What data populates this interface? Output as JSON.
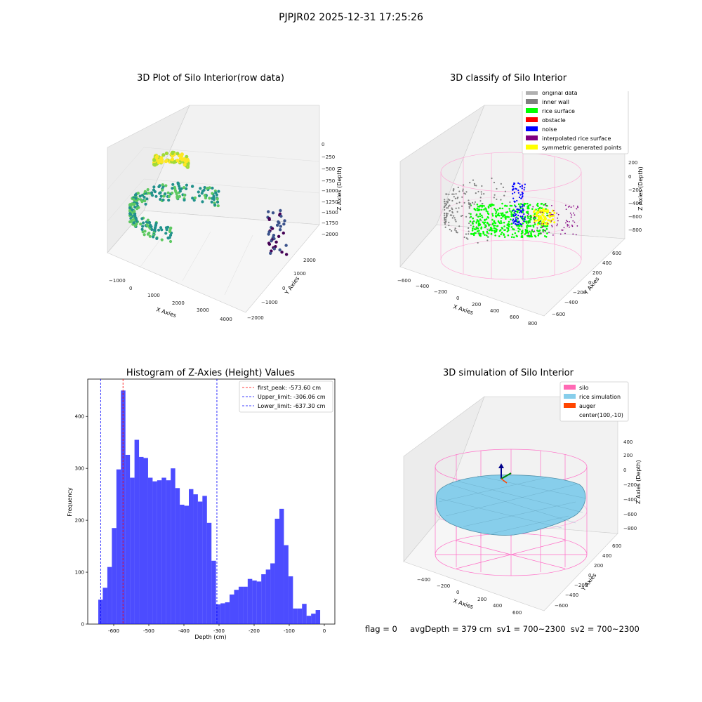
{
  "figure": {
    "title": "PJPJR02 2025-12-31 17:25:26",
    "footer": "flag = 0     avgDepth = 379 cm  sv1 = 700~2300  sv2 = 700~2300"
  },
  "chart_data": [
    {
      "type": "scatter",
      "title": "3D Plot of Silo Interior(row data)",
      "xlabel": "X Axies",
      "ylabel": "Y Axies",
      "zlabel": "Z Axies (Depth)",
      "x_ticks": [
        "−1000",
        "0",
        "1000",
        "2000",
        "3000",
        "4000"
      ],
      "y_ticks": [
        "2000",
        "1000",
        "0",
        "−1000",
        "−2000"
      ],
      "z_ticks": [
        "0",
        "−250",
        "−500",
        "−750",
        "−1000",
        "−1250",
        "−1500",
        "−1750",
        "−2000"
      ],
      "colormap": "viridis"
    },
    {
      "type": "scatter",
      "title": "3D classify of Silo Interior",
      "xlabel": "X Axies",
      "ylabel": "Y Axies",
      "zlabel": "Z Axies (Depth)",
      "x_ticks": [
        "−600",
        "−400",
        "−200",
        "0",
        "200",
        "400",
        "600",
        "800"
      ],
      "y_ticks": [
        "600",
        "400",
        "200",
        "0",
        "−200",
        "−400",
        "−600"
      ],
      "z_ticks": [
        "200",
        "0",
        "−200",
        "−400",
        "−600",
        "−800"
      ],
      "legend": [
        {
          "label": "original data",
          "color": "#b0b0b0"
        },
        {
          "label": "inner wall",
          "color": "#808080"
        },
        {
          "label": "rice surface",
          "color": "#00ff00"
        },
        {
          "label": "obstacle",
          "color": "#ff0000"
        },
        {
          "label": "noise",
          "color": "#0000ff"
        },
        {
          "label": "interpolated rice surface",
          "color": "#800080"
        },
        {
          "label": "symmetric generated points",
          "color": "#ffff00"
        }
      ]
    },
    {
      "type": "bar",
      "title": "Histogram of Z-Axies (Height) Values",
      "xlabel": "Depth (cm)",
      "ylabel": "Frequency",
      "xlim": [
        -674,
        30
      ],
      "ylim": [
        0,
        472
      ],
      "x_ticks": [
        -600,
        -500,
        -400,
        -300,
        -200,
        -100,
        0
      ],
      "y_ticks": [
        0,
        100,
        200,
        300,
        400
      ],
      "bin_start": -644,
      "bin_width": 12.9,
      "values": [
        47,
        70,
        110,
        185,
        298,
        450,
        326,
        282,
        355,
        322,
        320,
        282,
        275,
        277,
        282,
        277,
        300,
        262,
        230,
        228,
        260,
        250,
        236,
        247,
        195,
        122,
        38,
        40,
        42,
        57,
        66,
        72,
        72,
        87,
        84,
        82,
        96,
        105,
        117,
        203,
        222,
        152,
        92,
        30,
        30,
        39,
        16,
        20,
        27
      ],
      "bar_color": "#0000ff",
      "vlines": [
        {
          "x": -573.6,
          "color": "#ff0000",
          "label": "first_peak: -573.60 cm"
        },
        {
          "x": -306.06,
          "color": "#0000ff",
          "label": "Upper_limit: -306.06 cm"
        },
        {
          "x": -637.3,
          "color": "#0000ff",
          "label": "Lower_limit: -637.30 cm"
        }
      ]
    },
    {
      "type": "scatter",
      "title": "3D simulation of Silo Interior",
      "xlabel": "X Axies",
      "ylabel": "Y Axies",
      "zlabel": "Z Axies (Depth)",
      "x_ticks": [
        "−400",
        "−200",
        "0",
        "200",
        "400",
        "600"
      ],
      "y_ticks": [
        "600",
        "400",
        "200",
        "0",
        "−200",
        "−400",
        "−600"
      ],
      "z_ticks": [
        "400",
        "200",
        "0",
        "−200",
        "−400",
        "−600",
        "−800"
      ],
      "legend": [
        {
          "label": "silo",
          "color": "#ff69b4"
        },
        {
          "label": "rice simulation",
          "color": "#87ceeb"
        },
        {
          "label": "auger",
          "color": "#ff4500"
        },
        {
          "label": "center(100,-10)",
          "color": ""
        }
      ]
    }
  ]
}
